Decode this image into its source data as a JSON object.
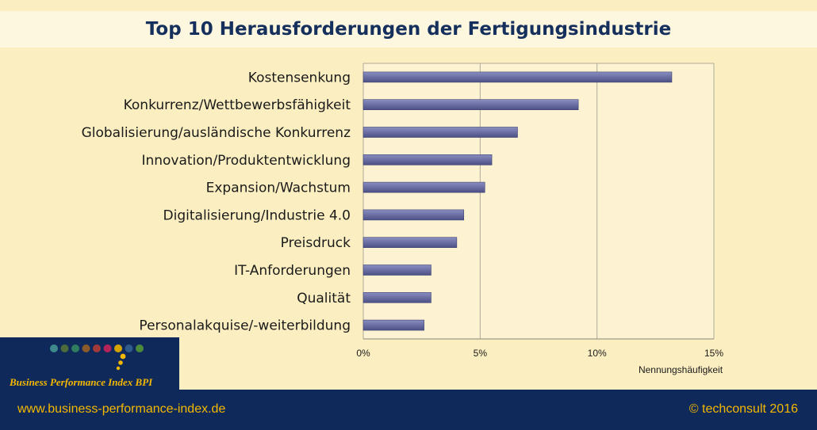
{
  "chart_data": {
    "type": "bar",
    "orientation": "horizontal",
    "title": "Top 10 Herausforderungen der Fertigungsindustrie",
    "xlabel": "Nennungshäufigkeit",
    "categories": [
      "Kostensenkung",
      "Konkurrenz/Wettbewerbsfähigkeit",
      "Globalisierung/ausländische Konkurrenz",
      "Innovation/Produktentwicklung",
      "Expansion/Wachstum",
      "Digitalisierung/Industrie 4.0",
      "Preisdruck",
      "IT-Anforderungen",
      "Qualität",
      "Personalakquise/-weiterbildung"
    ],
    "values": [
      13.2,
      9.2,
      6.6,
      5.5,
      5.2,
      4.3,
      4.0,
      2.9,
      2.9,
      2.6
    ],
    "xlim": [
      0,
      15
    ],
    "xticks": [
      0,
      5,
      10,
      15
    ],
    "xtick_labels": [
      "0%",
      "5%",
      "10%",
      "15%"
    ],
    "grid": "vertical",
    "bar_color": "#6b6fa3"
  },
  "logo": {
    "text": "Business Performance Index",
    "abbr": "BPI",
    "dot_colors": [
      "#3f8a8c",
      "#4d6b3a",
      "#2f7d5f",
      "#8a5a2b",
      "#a33a3a",
      "#b4235a",
      "#d6a400",
      "#2f5b8a",
      "#4a8a3a"
    ],
    "accent_color": "#f5b800"
  },
  "footer": {
    "url": "www.business-performance-index.de",
    "copyright": "© techconsult 2016"
  },
  "colors": {
    "background": "#fbeec1",
    "title_band": "#fdf7df",
    "navy": "#0f2a5a",
    "title_text": "#16305e"
  }
}
